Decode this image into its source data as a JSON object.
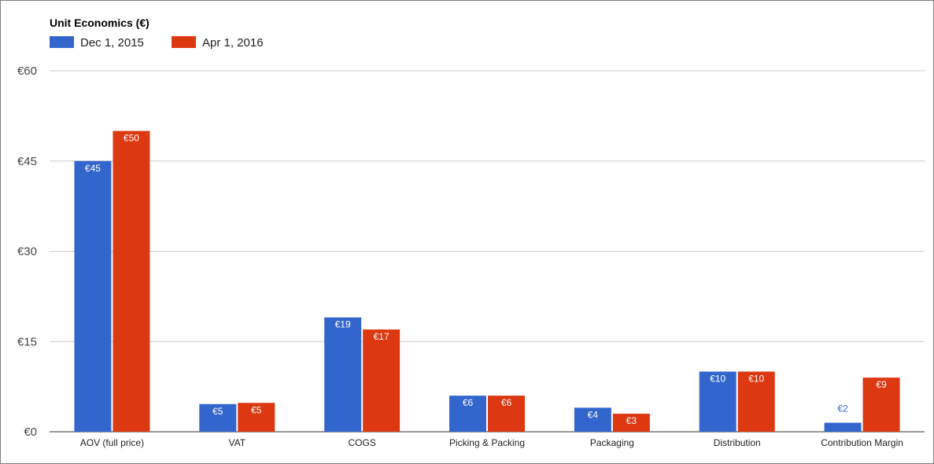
{
  "chart_data": {
    "type": "bar",
    "title": "Unit Economics (€)",
    "categories": [
      "AOV (full price)",
      "VAT",
      "COGS",
      "Picking & Packing",
      "Packaging",
      "Distribution",
      "Contribution Margin"
    ],
    "series": [
      {
        "name": "Dec 1, 2015",
        "color": "#3366cc",
        "values": [
          45,
          4.6,
          19,
          6,
          4,
          10,
          1.5
        ],
        "labels": [
          "€45",
          "€5",
          "€19",
          "€6",
          "€4",
          "€10",
          "€2"
        ]
      },
      {
        "name": "Apr 1, 2016",
        "color": "#dc3912",
        "values": [
          50,
          4.8,
          17,
          6,
          3,
          10,
          9
        ],
        "labels": [
          "€50",
          "€5",
          "€17",
          "€6",
          "€3",
          "€10",
          "€9"
        ]
      }
    ],
    "ylim": [
      0,
      60
    ],
    "yticks": [
      0,
      15,
      30,
      45,
      60
    ],
    "ytick_labels": [
      "€0",
      "€15",
      "€30",
      "€45",
      "€60"
    ],
    "grid": true,
    "legend_position": "top-left"
  }
}
